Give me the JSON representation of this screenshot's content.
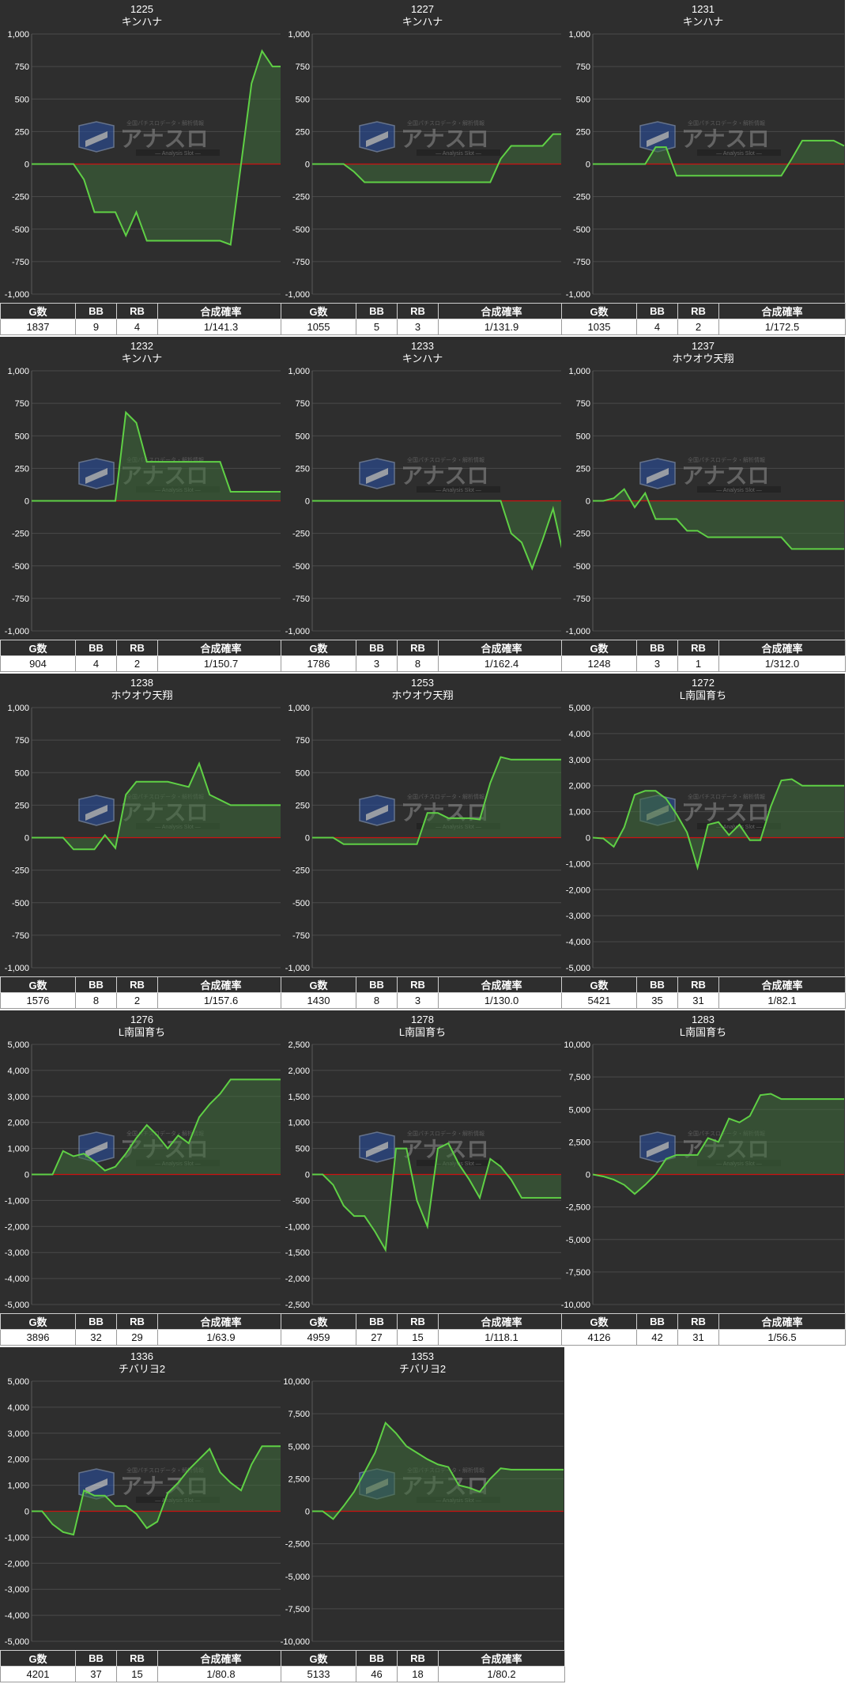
{
  "table_headers": {
    "games": "G数",
    "bb": "BB",
    "rb": "RB",
    "rate": "合成確率"
  },
  "watermark": {
    "title": "アナスロ",
    "subtitle": "Analysis Slot",
    "tagline": "全国パチスロデータ・解析情報"
  },
  "colors": {
    "panel": "#2e2e2e",
    "line": "#5fd045",
    "fill": "#3e6b3a",
    "zero": "#cc1111",
    "grid": "#4a4a4a"
  },
  "chart_data": [
    {
      "type": "area",
      "id": "1225",
      "model": "キンハナ",
      "ylim": [
        -1000,
        1000
      ],
      "yticks": [
        "1,000",
        "750",
        "500",
        "250",
        "0",
        "-250",
        "-500",
        "-750",
        "-1,000"
      ],
      "ytick_values": [
        1000,
        750,
        500,
        250,
        0,
        -250,
        -500,
        -750,
        -1000
      ],
      "x": [
        0,
        1,
        2,
        3,
        4,
        5,
        6,
        7,
        8,
        9,
        10,
        11,
        12,
        13,
        14,
        15,
        16,
        17,
        18,
        19,
        20,
        21,
        22,
        23,
        24
      ],
      "y": [
        0,
        0,
        0,
        0,
        0,
        -120,
        -370,
        -370,
        -370,
        -550,
        -370,
        -590,
        -590,
        -590,
        -590,
        -590,
        -590,
        -590,
        -590,
        -620,
        0,
        620,
        870,
        750,
        750
      ],
      "stats": {
        "games": "1837",
        "bb": "9",
        "rb": "4",
        "rate": "1/141.3"
      }
    },
    {
      "type": "area",
      "id": "1227",
      "model": "キンハナ",
      "ylim": [
        -1000,
        1000
      ],
      "yticks": [
        "1,000",
        "750",
        "500",
        "250",
        "0",
        "-250",
        "-500",
        "-750",
        "-1,000"
      ],
      "ytick_values": [
        1000,
        750,
        500,
        250,
        0,
        -250,
        -500,
        -750,
        -1000
      ],
      "x": [
        0,
        1,
        2,
        3,
        4,
        5,
        6,
        7,
        8,
        9,
        10,
        11,
        12,
        13,
        14,
        15,
        16,
        17,
        18,
        19,
        20,
        21,
        22,
        23,
        24
      ],
      "y": [
        0,
        0,
        0,
        0,
        -60,
        -140,
        -140,
        -140,
        -140,
        -140,
        -140,
        -140,
        -140,
        -140,
        -140,
        -140,
        -140,
        -140,
        40,
        140,
        140,
        140,
        140,
        230,
        230
      ],
      "stats": {
        "games": "1055",
        "bb": "5",
        "rb": "3",
        "rate": "1/131.9"
      }
    },
    {
      "type": "area",
      "id": "1231",
      "model": "キンハナ",
      "ylim": [
        -1000,
        1000
      ],
      "yticks": [
        "1,000",
        "750",
        "500",
        "250",
        "0",
        "-250",
        "-500",
        "-750",
        "-1,000"
      ],
      "ytick_values": [
        1000,
        750,
        500,
        250,
        0,
        -250,
        -500,
        -750,
        -1000
      ],
      "x": [
        0,
        1,
        2,
        3,
        4,
        5,
        6,
        7,
        8,
        9,
        10,
        11,
        12,
        13,
        14,
        15,
        16,
        17,
        18,
        19,
        20,
        21,
        22,
        23,
        24
      ],
      "y": [
        0,
        0,
        0,
        0,
        0,
        0,
        130,
        130,
        -90,
        -90,
        -90,
        -90,
        -90,
        -90,
        -90,
        -90,
        -90,
        -90,
        -90,
        40,
        180,
        180,
        180,
        180,
        140
      ],
      "stats": {
        "games": "1035",
        "bb": "4",
        "rb": "2",
        "rate": "1/172.5"
      }
    },
    {
      "type": "area",
      "id": "1232",
      "model": "キンハナ",
      "ylim": [
        -1000,
        1000
      ],
      "yticks": [
        "1,000",
        "750",
        "500",
        "250",
        "0",
        "-250",
        "-500",
        "-750",
        "-1,000"
      ],
      "ytick_values": [
        1000,
        750,
        500,
        250,
        0,
        -250,
        -500,
        -750,
        -1000
      ],
      "x": [
        0,
        1,
        2,
        3,
        4,
        5,
        6,
        7,
        8,
        9,
        10,
        11,
        12,
        13,
        14,
        15,
        16,
        17,
        18,
        19,
        20,
        21,
        22,
        23,
        24
      ],
      "y": [
        0,
        0,
        0,
        0,
        0,
        0,
        0,
        0,
        0,
        680,
        600,
        300,
        300,
        300,
        300,
        300,
        300,
        300,
        300,
        70,
        70,
        70,
        70,
        70,
        70
      ],
      "stats": {
        "games": "904",
        "bb": "4",
        "rb": "2",
        "rate": "1/150.7"
      }
    },
    {
      "type": "area",
      "id": "1233",
      "model": "キンハナ",
      "ylim": [
        -1000,
        1000
      ],
      "yticks": [
        "1,000",
        "750",
        "500",
        "250",
        "0",
        "-250",
        "-500",
        "-750",
        "-1,000"
      ],
      "ytick_values": [
        1000,
        750,
        500,
        250,
        0,
        -250,
        -500,
        -750,
        -1000
      ],
      "x": [
        0,
        1,
        2,
        3,
        4,
        5,
        6,
        7,
        8,
        9,
        10,
        11,
        12,
        13,
        14,
        15,
        16,
        17,
        18,
        19,
        20,
        21,
        22,
        23,
        24
      ],
      "y": [
        0,
        0,
        0,
        0,
        0,
        0,
        0,
        0,
        0,
        0,
        0,
        0,
        0,
        0,
        0,
        0,
        0,
        0,
        0,
        -250,
        -320,
        -520,
        -300,
        -60,
        -420
      ],
      "stats": {
        "games": "1786",
        "bb": "3",
        "rb": "8",
        "rate": "1/162.4"
      }
    },
    {
      "type": "area",
      "id": "1237",
      "model": "ホウオウ天翔",
      "ylim": [
        -1000,
        1000
      ],
      "yticks": [
        "1,000",
        "750",
        "500",
        "250",
        "0",
        "-250",
        "-500",
        "-750",
        "-1,000"
      ],
      "ytick_values": [
        1000,
        750,
        500,
        250,
        0,
        -250,
        -500,
        -750,
        -1000
      ],
      "x": [
        0,
        1,
        2,
        3,
        4,
        5,
        6,
        7,
        8,
        9,
        10,
        11,
        12,
        13,
        14,
        15,
        16,
        17,
        18,
        19,
        20,
        21,
        22,
        23,
        24
      ],
      "y": [
        0,
        0,
        20,
        90,
        -50,
        60,
        -140,
        -140,
        -140,
        -230,
        -230,
        -280,
        -280,
        -280,
        -280,
        -280,
        -280,
        -280,
        -280,
        -370,
        -370,
        -370,
        -370,
        -370,
        -370
      ],
      "stats": {
        "games": "1248",
        "bb": "3",
        "rb": "1",
        "rate": "1/312.0"
      }
    },
    {
      "type": "area",
      "id": "1238",
      "model": "ホウオウ天翔",
      "ylim": [
        -1000,
        1000
      ],
      "yticks": [
        "1,000",
        "750",
        "500",
        "250",
        "0",
        "-250",
        "-500",
        "-750",
        "-1,000"
      ],
      "ytick_values": [
        1000,
        750,
        500,
        250,
        0,
        -250,
        -500,
        -750,
        -1000
      ],
      "x": [
        0,
        1,
        2,
        3,
        4,
        5,
        6,
        7,
        8,
        9,
        10,
        11,
        12,
        13,
        14,
        15,
        16,
        17,
        18,
        19,
        20,
        21,
        22,
        23,
        24
      ],
      "y": [
        0,
        0,
        0,
        0,
        -90,
        -90,
        -90,
        20,
        -80,
        330,
        430,
        430,
        430,
        430,
        410,
        390,
        570,
        330,
        290,
        250,
        250,
        250,
        250,
        250,
        250
      ],
      "stats": {
        "games": "1576",
        "bb": "8",
        "rb": "2",
        "rate": "1/157.6"
      }
    },
    {
      "type": "area",
      "id": "1253",
      "model": "ホウオウ天翔",
      "ylim": [
        -1000,
        1000
      ],
      "yticks": [
        "1,000",
        "750",
        "500",
        "250",
        "0",
        "-250",
        "-500",
        "-750",
        "-1,000"
      ],
      "ytick_values": [
        1000,
        750,
        500,
        250,
        0,
        -250,
        -500,
        -750,
        -1000
      ],
      "x": [
        0,
        1,
        2,
        3,
        4,
        5,
        6,
        7,
        8,
        9,
        10,
        11,
        12,
        13,
        14,
        15,
        16,
        17,
        18,
        19,
        20,
        21,
        22,
        23,
        24
      ],
      "y": [
        0,
        0,
        0,
        -50,
        -50,
        -50,
        -50,
        -50,
        -50,
        -50,
        -50,
        190,
        190,
        150,
        150,
        150,
        140,
        420,
        620,
        600,
        600,
        600,
        600,
        600,
        600
      ],
      "stats": {
        "games": "1430",
        "bb": "8",
        "rb": "3",
        "rate": "1/130.0"
      }
    },
    {
      "type": "area",
      "id": "1272",
      "model": "L南国育ち",
      "ylim": [
        -5000,
        5000
      ],
      "yticks": [
        "5,000",
        "4,000",
        "3,000",
        "2,000",
        "1,000",
        "0",
        "-1,000",
        "-2,000",
        "-3,000",
        "-4,000",
        "-5,000"
      ],
      "ytick_values": [
        5000,
        4000,
        3000,
        2000,
        1000,
        0,
        -1000,
        -2000,
        -3000,
        -4000,
        -5000
      ],
      "x": [
        0,
        1,
        2,
        3,
        4,
        5,
        6,
        7,
        8,
        9,
        10,
        11,
        12,
        13,
        14,
        15,
        16,
        17,
        18,
        19,
        20,
        21,
        22,
        23,
        24
      ],
      "y": [
        0,
        -30,
        -350,
        400,
        1650,
        1800,
        1800,
        1500,
        900,
        200,
        -1150,
        500,
        600,
        100,
        500,
        -100,
        -100,
        1200,
        2200,
        2250,
        2000,
        2000,
        2000,
        2000,
        2000
      ],
      "stats": {
        "games": "5421",
        "bb": "35",
        "rb": "31",
        "rate": "1/82.1"
      }
    },
    {
      "type": "area",
      "id": "1276",
      "model": "L南国育ち",
      "ylim": [
        -5000,
        5000
      ],
      "yticks": [
        "5,000",
        "4,000",
        "3,000",
        "2,000",
        "1,000",
        "0",
        "-1,000",
        "-2,000",
        "-3,000",
        "-4,000",
        "-5,000"
      ],
      "ytick_values": [
        5000,
        4000,
        3000,
        2000,
        1000,
        0,
        -1000,
        -2000,
        -3000,
        -4000,
        -5000
      ],
      "x": [
        0,
        1,
        2,
        3,
        4,
        5,
        6,
        7,
        8,
        9,
        10,
        11,
        12,
        13,
        14,
        15,
        16,
        17,
        18,
        19,
        20,
        21,
        22,
        23,
        24
      ],
      "y": [
        0,
        0,
        0,
        900,
        700,
        800,
        500,
        150,
        300,
        800,
        1400,
        1900,
        1500,
        1000,
        1500,
        1200,
        2200,
        2700,
        3100,
        3650,
        3650,
        3650,
        3650,
        3650,
        3650
      ],
      "stats": {
        "games": "3896",
        "bb": "32",
        "rb": "29",
        "rate": "1/63.9"
      }
    },
    {
      "type": "area",
      "id": "1278",
      "model": "L南国育ち",
      "ylim": [
        -2500,
        2500
      ],
      "yticks": [
        "2,500",
        "2,000",
        "1,500",
        "1,000",
        "500",
        "0",
        "-500",
        "-1,000",
        "-1,500",
        "-2,000",
        "-2,500"
      ],
      "ytick_values": [
        2500,
        2000,
        1500,
        1000,
        500,
        0,
        -500,
        -1000,
        -1500,
        -2000,
        -2500
      ],
      "x": [
        0,
        1,
        2,
        3,
        4,
        5,
        6,
        7,
        8,
        9,
        10,
        11,
        12,
        13,
        14,
        15,
        16,
        17,
        18,
        19,
        20,
        21,
        22,
        23,
        24
      ],
      "y": [
        0,
        0,
        -200,
        -600,
        -800,
        -800,
        -1100,
        -1450,
        500,
        500,
        -500,
        -1000,
        500,
        600,
        200,
        -100,
        -450,
        300,
        150,
        -100,
        -450,
        -450,
        -450,
        -450,
        -450
      ],
      "stats": {
        "games": "4959",
        "bb": "27",
        "rb": "15",
        "rate": "1/118.1"
      }
    },
    {
      "type": "area",
      "id": "1283",
      "model": "L南国育ち",
      "ylim": [
        -10000,
        10000
      ],
      "yticks": [
        "10,000",
        "7,500",
        "5,000",
        "2,500",
        "0",
        "-2,500",
        "-5,000",
        "-7,500",
        "-10,000"
      ],
      "ytick_values": [
        10000,
        7500,
        5000,
        2500,
        0,
        -2500,
        -5000,
        -7500,
        -10000
      ],
      "x": [
        0,
        1,
        2,
        3,
        4,
        5,
        6,
        7,
        8,
        9,
        10,
        11,
        12,
        13,
        14,
        15,
        16,
        17,
        18,
        19,
        20,
        21,
        22,
        23,
        24
      ],
      "y": [
        0,
        -150,
        -400,
        -800,
        -1500,
        -800,
        0,
        1200,
        1500,
        1500,
        1500,
        2800,
        2500,
        4300,
        4000,
        4500,
        6100,
        6200,
        5800,
        5800,
        5800,
        5800,
        5800,
        5800,
        5800
      ],
      "stats": {
        "games": "4126",
        "bb": "42",
        "rb": "31",
        "rate": "1/56.5"
      }
    },
    {
      "type": "area",
      "id": "1336",
      "model": "チバリヨ2",
      "ylim": [
        -5000,
        5000
      ],
      "yticks": [
        "5,000",
        "4,000",
        "3,000",
        "2,000",
        "1,000",
        "0",
        "-1,000",
        "-2,000",
        "-3,000",
        "-4,000",
        "-5,000"
      ],
      "ytick_values": [
        5000,
        4000,
        3000,
        2000,
        1000,
        0,
        -1000,
        -2000,
        -3000,
        -4000,
        -5000
      ],
      "x": [
        0,
        1,
        2,
        3,
        4,
        5,
        6,
        7,
        8,
        9,
        10,
        11,
        12,
        13,
        14,
        15,
        16,
        17,
        18,
        19,
        20,
        21,
        22,
        23,
        24
      ],
      "y": [
        0,
        0,
        -500,
        -800,
        -900,
        800,
        600,
        600,
        200,
        200,
        -100,
        -650,
        -400,
        700,
        1100,
        1600,
        2000,
        2400,
        1500,
        1100,
        800,
        1800,
        2500,
        2500,
        2500
      ],
      "stats": {
        "games": "4201",
        "bb": "37",
        "rb": "15",
        "rate": "1/80.8"
      }
    },
    {
      "type": "area",
      "id": "1353",
      "model": "チバリヨ2",
      "ylim": [
        -10000,
        10000
      ],
      "yticks": [
        "10,000",
        "7,500",
        "5,000",
        "2,500",
        "0",
        "-2,500",
        "-5,000",
        "-7,500",
        "-10,000"
      ],
      "ytick_values": [
        10000,
        7500,
        5000,
        2500,
        0,
        -2500,
        -5000,
        -7500,
        -10000
      ],
      "x": [
        0,
        1,
        2,
        3,
        4,
        5,
        6,
        7,
        8,
        9,
        10,
        11,
        12,
        13,
        14,
        15,
        16,
        17,
        18,
        19,
        20,
        21,
        22,
        23,
        24
      ],
      "y": [
        0,
        0,
        -600,
        400,
        1500,
        3000,
        4500,
        6800,
        6000,
        5000,
        4500,
        4000,
        3600,
        3400,
        2000,
        1800,
        1500,
        2500,
        3300,
        3200,
        3200,
        3200,
        3200,
        3200,
        3200
      ],
      "stats": {
        "games": "5133",
        "bb": "46",
        "rb": "18",
        "rate": "1/80.2"
      }
    }
  ]
}
